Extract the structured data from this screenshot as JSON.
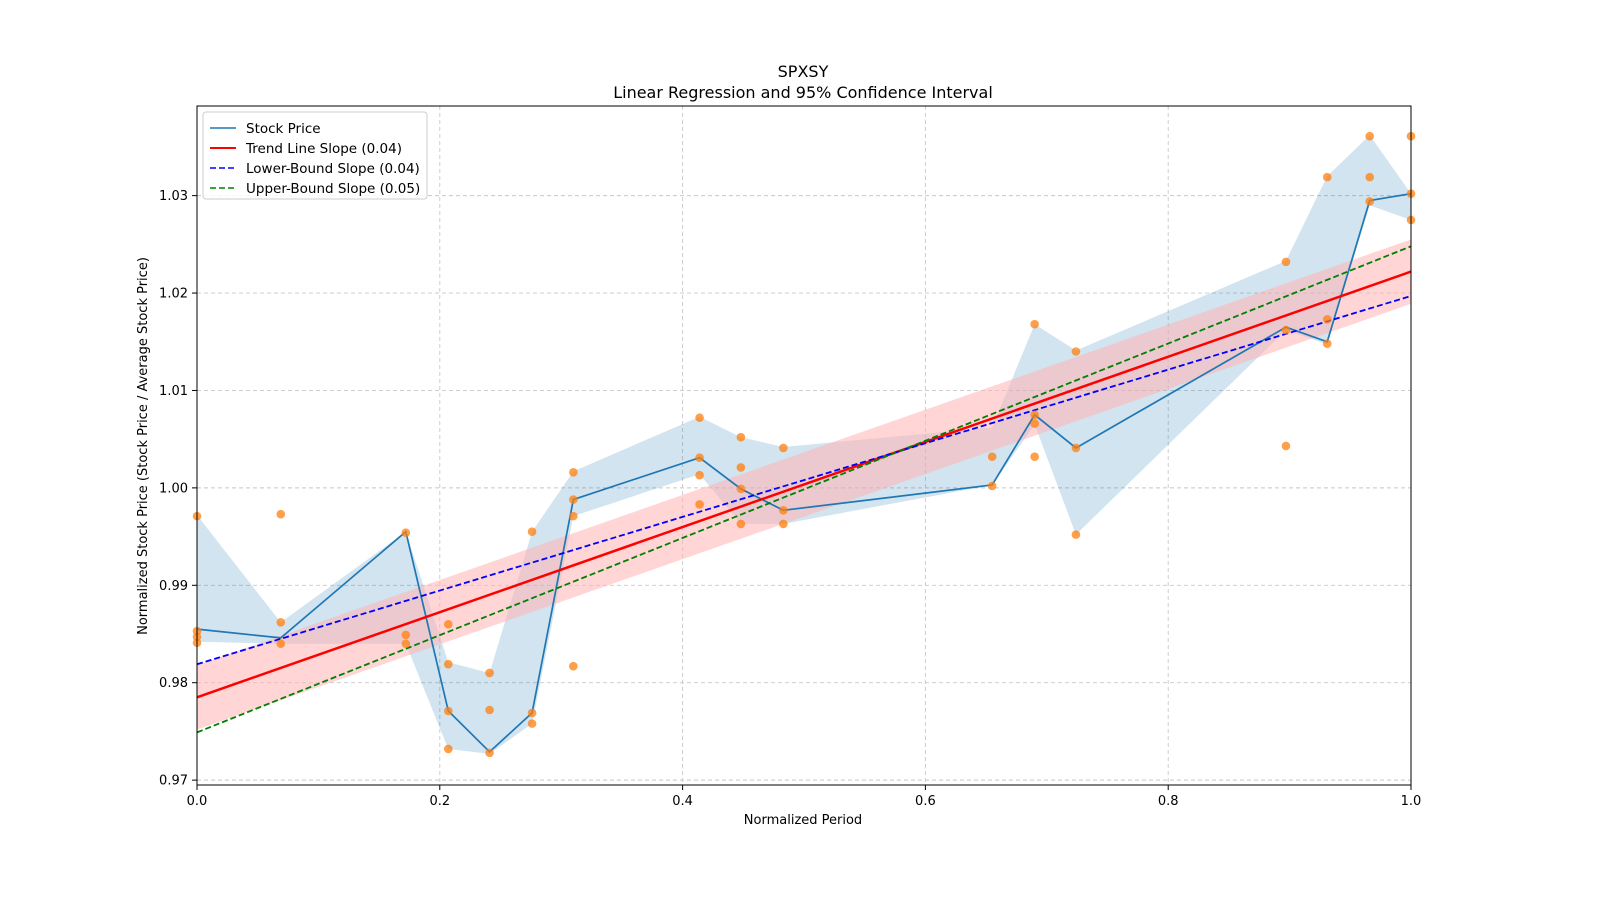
{
  "chart_data": {
    "type": "line",
    "title": "SPXSY",
    "subtitle": "Linear Regression and 95% Confidence Interval",
    "xlabel": "Normalized Period",
    "ylabel": "Normalized Stock Price (Stock Price / Average Stock Price)",
    "xlim": [
      0.0,
      1.0
    ],
    "ylim": [
      0.9695,
      1.0392
    ],
    "xticks": [
      0.0,
      0.2,
      0.4,
      0.6,
      0.8,
      1.0
    ],
    "xtick_labels": [
      "0.0",
      "0.2",
      "0.4",
      "0.6",
      "0.8",
      "1.0"
    ],
    "yticks": [
      0.97,
      0.98,
      0.99,
      1.0,
      1.01,
      1.02,
      1.03
    ],
    "ytick_labels": [
      "0.97",
      "0.98",
      "0.99",
      "1.00",
      "1.01",
      "1.02",
      "1.03"
    ],
    "grid": true,
    "legend_position": "top-left",
    "colors": {
      "stock": "#1f77b4",
      "stock_band": "#1f77b4",
      "trend": "#ff0000",
      "trend_band": "#ffb3b3",
      "lower": "#0000ff",
      "upper": "#008000",
      "scatter": "#ff7f0e",
      "grid": "#c8c8c8"
    },
    "series": [
      {
        "name": "Stock Price",
        "kind": "line",
        "x": [
          0.0,
          0.069,
          0.172,
          0.207,
          0.241,
          0.276,
          0.31,
          0.414,
          0.448,
          0.483,
          0.655,
          0.69,
          0.724,
          0.897,
          0.931,
          0.966,
          1.0
        ],
        "y": [
          0.9855,
          0.9846,
          0.9955,
          0.9771,
          0.9729,
          0.9769,
          0.9988,
          1.0031,
          0.9999,
          0.9977,
          1.0003,
          1.0075,
          1.0041,
          1.0165,
          1.015,
          1.0295,
          1.0302
        ],
        "band_low": [
          0.9842,
          0.984,
          0.984,
          0.9732,
          0.9727,
          0.9758,
          0.9971,
          1.0014,
          0.9963,
          0.9963,
          1.0003,
          1.0065,
          0.9952,
          1.0162,
          1.0147,
          1.029,
          1.0275
        ],
        "band_high": [
          0.9972,
          0.9862,
          0.9955,
          0.9821,
          0.981,
          0.9955,
          1.0017,
          1.0073,
          1.0052,
          1.0042,
          1.0062,
          1.0168,
          1.0141,
          1.0233,
          1.032,
          1.0362,
          1.0302
        ]
      },
      {
        "name": "Trend Line Slope (0.04)",
        "kind": "line",
        "x": [
          0.0,
          1.0
        ],
        "y": [
          0.9785,
          1.0222
        ],
        "band_offset": 0.0033
      },
      {
        "name": "Lower-Bound Slope (0.04)",
        "kind": "dashed-line",
        "x": [
          0.0,
          1.0
        ],
        "y": [
          0.9819,
          1.0197
        ]
      },
      {
        "name": "Upper-Bound Slope (0.05)",
        "kind": "dashed-line",
        "x": [
          0.0,
          1.0
        ],
        "y": [
          0.9749,
          1.0248
        ]
      }
    ],
    "scatter_points": [
      [
        0.0,
        0.9971
      ],
      [
        0.0,
        0.9853
      ],
      [
        0.0,
        0.9847
      ],
      [
        0.0,
        0.9841
      ],
      [
        0.069,
        0.9973
      ],
      [
        0.069,
        0.9862
      ],
      [
        0.069,
        0.984
      ],
      [
        0.172,
        0.9954
      ],
      [
        0.172,
        0.9849
      ],
      [
        0.172,
        0.984
      ],
      [
        0.207,
        0.986
      ],
      [
        0.207,
        0.9819
      ],
      [
        0.207,
        0.9771
      ],
      [
        0.207,
        0.9732
      ],
      [
        0.241,
        0.981
      ],
      [
        0.241,
        0.9772
      ],
      [
        0.241,
        0.9728
      ],
      [
        0.276,
        0.9955
      ],
      [
        0.276,
        0.9769
      ],
      [
        0.276,
        0.9758
      ],
      [
        0.31,
        1.0016
      ],
      [
        0.31,
        0.9988
      ],
      [
        0.31,
        0.9971
      ],
      [
        0.31,
        0.9817
      ],
      [
        0.414,
        1.0072
      ],
      [
        0.414,
        1.0031
      ],
      [
        0.414,
        1.0013
      ],
      [
        0.414,
        0.9983
      ],
      [
        0.448,
        1.0052
      ],
      [
        0.448,
        1.0021
      ],
      [
        0.448,
        0.9999
      ],
      [
        0.448,
        0.9963
      ],
      [
        0.483,
        1.0041
      ],
      [
        0.483,
        0.9977
      ],
      [
        0.483,
        0.9963
      ],
      [
        0.655,
        1.0032
      ],
      [
        0.655,
        1.0002
      ],
      [
        0.69,
        1.0168
      ],
      [
        0.69,
        1.0075
      ],
      [
        0.69,
        1.0066
      ],
      [
        0.69,
        1.0032
      ],
      [
        0.724,
        1.014
      ],
      [
        0.724,
        1.0041
      ],
      [
        0.724,
        0.9952
      ],
      [
        0.897,
        1.0232
      ],
      [
        0.897,
        1.0162
      ],
      [
        0.897,
        1.0043
      ],
      [
        0.931,
        1.0319
      ],
      [
        0.931,
        1.0173
      ],
      [
        0.931,
        1.0148
      ],
      [
        0.966,
        1.0361
      ],
      [
        0.966,
        1.0319
      ],
      [
        0.966,
        1.0294
      ],
      [
        1.0,
        1.0361
      ],
      [
        1.0,
        1.0302
      ],
      [
        1.0,
        1.0275
      ]
    ]
  }
}
